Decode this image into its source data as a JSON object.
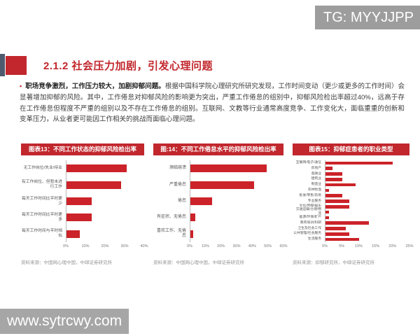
{
  "badges": {
    "tg": "TG: MYYJJPP",
    "watermark": "www.sytrcwy.com"
  },
  "heading": {
    "title": "2.1.2 社会压力加剧，引发心理问题"
  },
  "paragraph": {
    "bullet": "▪",
    "lead": "职场竞争激烈，工作压力较大，加剧抑郁问题。",
    "body": "根据中国科学院心理研究所研究发现，工作时间变动（更少或更多的工作时间）会显著增加抑郁的风险。其中，工作倦怠对抑郁风险的影响更为突出，严重工作倦怠的组别中，抑郁风险检出率超过40%，远高于存在工作倦怠但程度不严重的组别以及不存在工作倦怠的组别。互联网、文教等行业通常高度竞争、工作变化大，面临重重的创新和变革压力，从业者更可能因工作相关的挑战而面临心理问题。"
  },
  "colors": {
    "accent_red": "#c1272d",
    "bar_red": "#cb2329",
    "badge_gray": "#9d9d9d",
    "watermark_gray": "#a6a6a6",
    "strip_slate": "#4e5b6e"
  },
  "chart_data": [
    {
      "type": "bar",
      "orientation": "horizontal",
      "title": "图表13：不同工作状态的抑郁风险检出率",
      "source": "资料来源：中国网心理中国，中邮证券研究所",
      "categories": [
        "无工作岗位/失业/待业",
        "有工作岗位、但暂未进行工作",
        "每天工作时间比平时更少",
        "每天工作时间比平时更多",
        "每天工作时间与平时相似"
      ],
      "values": [
        31,
        28,
        13,
        13,
        7
      ],
      "xlim": [
        0,
        40
      ],
      "xticks": [
        "0%",
        "10%",
        "20%",
        "30%",
        "40%"
      ],
      "xtick_values": [
        0,
        10,
        20,
        30,
        40
      ],
      "grid": false,
      "legend": "none"
    },
    {
      "type": "bar",
      "orientation": "horizontal",
      "title": "图:14：不同工作倦怠水平的抑郁风险检出率",
      "source": "资料来源：中国网心理中国，中邮证券研究所",
      "categories": [
        "濒临崩溃",
        "严重倦怠",
        "倦怠",
        "有症状、无倦怠",
        "喜欢工作、无倦怠"
      ],
      "values": [
        49,
        41,
        14,
        3,
        2
      ],
      "xlim": [
        0,
        60
      ],
      "xticks": [
        "0%",
        "10%",
        "20%",
        "30%",
        "40%",
        "50%",
        "60%"
      ],
      "xtick_values": [
        0,
        10,
        20,
        30,
        40,
        50,
        60
      ],
      "grid": false,
      "legend": "none"
    },
    {
      "type": "bar",
      "orientation": "horizontal",
      "title": "图表15：抑郁症患者的职业类型",
      "source": "资料来源：抑郁研究所，中邮证券研究所",
      "categories": [
        "互联网/电子/通信",
        "房地产",
        "金融业",
        "建筑业",
        "制造业",
        "农林牧渔",
        "批发/零售/贸易",
        "专业服务",
        "文化/传媒/娱乐",
        "交通运输/仓储/物流",
        "能源/环保/矿产",
        "教育培训/科研",
        "卫生及社会工作",
        "公共管理/社会服务",
        "生活服务"
      ],
      "values": [
        20,
        2,
        5,
        5,
        9,
        1,
        5,
        7,
        7,
        1,
        1,
        13,
        6,
        7,
        10
      ],
      "xlim": [
        0,
        25
      ],
      "xticks": [
        "0%",
        "5%",
        "10%",
        "15%",
        "20%",
        "25%"
      ],
      "xtick_values": [
        0,
        5,
        10,
        15,
        20,
        25
      ],
      "grid": false,
      "legend": "none"
    }
  ]
}
